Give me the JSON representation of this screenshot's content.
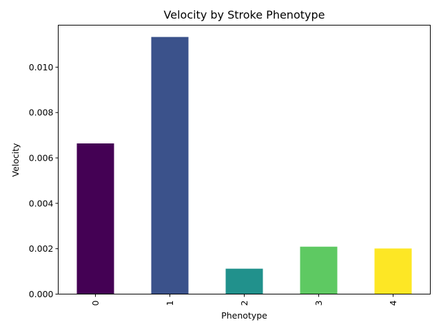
{
  "chart_data": {
    "type": "bar",
    "title": "Velocity by Stroke Phenotype",
    "xlabel": "Phenotype",
    "ylabel": "Velocity",
    "categories": [
      "0",
      "1",
      "2",
      "3",
      "4"
    ],
    "values": [
      0.00664,
      0.01133,
      0.00112,
      0.00209,
      0.00201
    ],
    "colors": [
      "#440154",
      "#3b528b",
      "#21918c",
      "#5ec962",
      "#fde725"
    ],
    "ylim": [
      0,
      0.01185
    ],
    "yticks": [
      0.0,
      0.002,
      0.004,
      0.006,
      0.008,
      0.01
    ],
    "ytick_labels": [
      "0.000",
      "0.002",
      "0.004",
      "0.006",
      "0.008",
      "0.010"
    ],
    "x_tick_rotation": 90,
    "grid": false,
    "legend": "none"
  }
}
